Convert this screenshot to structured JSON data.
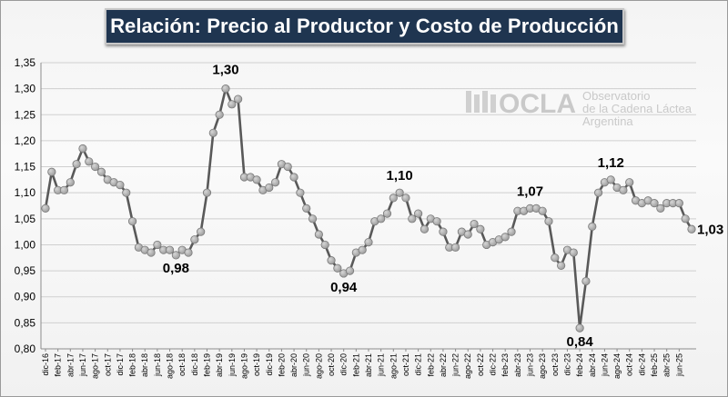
{
  "chart_data": {
    "type": "line",
    "title": "Relación: Precio al Productor y Costo de Producción",
    "ylim": [
      0.8,
      1.35
    ],
    "y_ticks": [
      "0,80",
      "0,85",
      "0,90",
      "0,95",
      "1,00",
      "1,05",
      "1,10",
      "1,15",
      "1,20",
      "1,25",
      "1,30",
      "1,35"
    ],
    "grid": true,
    "x_tick_labels": [
      "dic-16",
      "feb-17",
      "abr-17",
      "jun-17",
      "ago-17",
      "oct-17",
      "dic-17",
      "feb-18",
      "abr-18",
      "jun-18",
      "ago-18",
      "oct-18",
      "dic-18",
      "feb-19",
      "abr-19",
      "jun-19",
      "ago-19",
      "oct-19",
      "dic-19",
      "feb-20",
      "abr-20",
      "jun-20",
      "ago-20",
      "oct-20",
      "dic-20",
      "feb-21",
      "abr-21",
      "jun-21",
      "ago-21",
      "oct-21",
      "dic-21",
      "feb-22",
      "abr-22",
      "jun-22",
      "ago-22",
      "oct-22",
      "dic-22",
      "feb-23",
      "abr-23",
      "jun-23",
      "ago-23",
      "oct-23",
      "dic-23",
      "feb-24",
      "abr-24",
      "jun-24",
      "ago-24",
      "oct-24",
      "dic-24",
      "feb-25",
      "abr-25",
      "jun-25"
    ],
    "start_month": "dic-16",
    "series": [
      {
        "name": "",
        "color": "#595959",
        "values": [
          1.07,
          1.14,
          1.105,
          1.105,
          1.12,
          1.155,
          1.185,
          1.16,
          1.15,
          1.14,
          1.125,
          1.12,
          1.115,
          1.1,
          1.045,
          0.995,
          0.99,
          0.985,
          1.0,
          0.99,
          0.99,
          0.98,
          0.99,
          0.985,
          1.01,
          1.025,
          1.1,
          1.215,
          1.25,
          1.3,
          1.27,
          1.28,
          1.13,
          1.13,
          1.125,
          1.105,
          1.11,
          1.12,
          1.155,
          1.15,
          1.13,
          1.1,
          1.07,
          1.05,
          1.02,
          1.0,
          0.97,
          0.955,
          0.945,
          0.95,
          0.985,
          0.99,
          1.005,
          1.045,
          1.05,
          1.06,
          1.09,
          1.1,
          1.09,
          1.05,
          1.06,
          1.03,
          1.05,
          1.045,
          1.025,
          0.995,
          0.995,
          1.025,
          1.02,
          1.04,
          1.03,
          1.0,
          1.005,
          1.01,
          1.015,
          1.025,
          1.065,
          1.065,
          1.07,
          1.07,
          1.065,
          1.045,
          0.975,
          0.96,
          0.99,
          0.985,
          0.84,
          0.93,
          1.035,
          1.1,
          1.12,
          1.125,
          1.11,
          1.105,
          1.12,
          1.085,
          1.08,
          1.085,
          1.08,
          1.07,
          1.08,
          1.08,
          1.08,
          1.05,
          1.03
        ]
      }
    ],
    "annotations": [
      {
        "text": "1,30",
        "index": 29
      },
      {
        "text": "0,98",
        "index": 21
      },
      {
        "text": "0,94",
        "index": 48
      },
      {
        "text": "1,10",
        "index": 57
      },
      {
        "text": "1,07",
        "index": 78
      },
      {
        "text": "0,84",
        "index": 86
      },
      {
        "text": "1,12",
        "index": 91
      },
      {
        "text": "1,03",
        "index": 104
      }
    ]
  },
  "logo": {
    "name": "OCLA",
    "line1": "Observatorio",
    "line2": "de la Cadena Láctea",
    "line3": "Argentina"
  }
}
